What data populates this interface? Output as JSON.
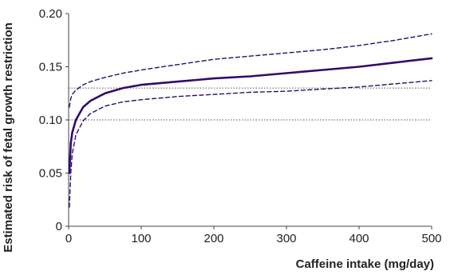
{
  "chart_data": {
    "type": "line",
    "title": "",
    "xlabel": "Caffeine intake (mg/day)",
    "ylabel": "Estimated risk of fetal growth restriction",
    "xlim": [
      0,
      500
    ],
    "ylim": [
      0,
      0.2
    ],
    "xticks": [
      0,
      100,
      200,
      300,
      400,
      500
    ],
    "yticks": [
      0,
      0.05,
      0.1,
      0.15,
      0.2
    ],
    "xtick_labels": [
      "0",
      "100",
      "200",
      "300",
      "400",
      "500"
    ],
    "ytick_labels": [
      "0",
      "0.05",
      "0.10",
      "0.15",
      "0.20"
    ],
    "reference_lines": [
      0.13,
      0.1
    ],
    "colors": {
      "series": "#2e0d6b",
      "reference": "#555555",
      "axis": "#444444"
    },
    "series": [
      {
        "role": "estimate",
        "style": "solid",
        "x": [
          1,
          3,
          5,
          10,
          20,
          30,
          50,
          75,
          100,
          150,
          200,
          250,
          300,
          350,
          400,
          450,
          500
        ],
        "y": [
          0.05,
          0.078,
          0.088,
          0.1,
          0.112,
          0.118,
          0.125,
          0.13,
          0.133,
          0.136,
          0.139,
          0.141,
          0.144,
          0.147,
          0.15,
          0.154,
          0.158
        ]
      },
      {
        "role": "upper confidence limit",
        "style": "dashed",
        "x": [
          1,
          3,
          5,
          10,
          20,
          30,
          50,
          75,
          100,
          150,
          200,
          250,
          300,
          350,
          400,
          450,
          500
        ],
        "y": [
          0.112,
          0.12,
          0.124,
          0.128,
          0.133,
          0.136,
          0.14,
          0.144,
          0.147,
          0.152,
          0.157,
          0.16,
          0.163,
          0.166,
          0.17,
          0.175,
          0.181
        ]
      },
      {
        "role": "lower confidence limit",
        "style": "dashed",
        "x": [
          1,
          3,
          5,
          10,
          20,
          30,
          50,
          75,
          100,
          150,
          200,
          250,
          300,
          350,
          400,
          450,
          500
        ],
        "y": [
          0.018,
          0.05,
          0.068,
          0.086,
          0.099,
          0.106,
          0.113,
          0.117,
          0.119,
          0.122,
          0.124,
          0.126,
          0.127,
          0.129,
          0.131,
          0.134,
          0.137
        ]
      }
    ]
  }
}
